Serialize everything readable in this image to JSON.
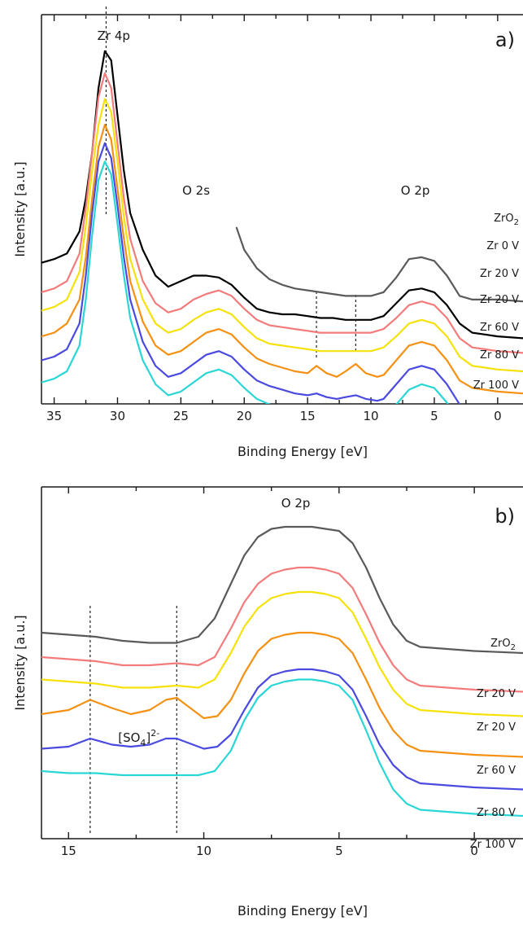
{
  "chart_data": [
    {
      "type": "line",
      "panel_label": "a)",
      "xlabel": "Binding Energy [eV]",
      "ylabel": "Intensity [a.u.]",
      "xlim": [
        36,
        -2
      ],
      "x_reversed": true,
      "x_ticks": [
        35,
        30,
        25,
        20,
        15,
        10,
        5,
        0
      ],
      "annotations": [
        {
          "text": "Zr 4p",
          "x": 30.3
        },
        {
          "text": "O 2s",
          "x": 23.8
        },
        {
          "text": "O 2p",
          "x": 6.5
        }
      ],
      "dashed_lines_x": [
        30.9,
        14.3,
        11.2
      ],
      "series": [
        {
          "name": "ZrO",
          "name_sub": "2",
          "color": "#5a5a5a",
          "x": [
            20.6,
            20,
            19,
            18,
            17,
            16,
            15,
            14,
            13,
            12,
            11,
            10,
            9,
            8,
            7,
            6,
            5,
            4,
            3,
            2,
            1,
            0,
            -2
          ],
          "y": [
            0.74,
            0.62,
            0.52,
            0.46,
            0.43,
            0.41,
            0.4,
            0.39,
            0.38,
            0.37,
            0.37,
            0.37,
            0.39,
            0.47,
            0.57,
            0.58,
            0.56,
            0.48,
            0.37,
            0.35,
            0.35,
            0.35,
            0.34
          ]
        },
        {
          "name": "Zr 0 V",
          "color": "#000000",
          "x": [
            36,
            35,
            34,
            33,
            32.5,
            32,
            31.5,
            31,
            30.5,
            30,
            29.5,
            29,
            28,
            27,
            26,
            25,
            24,
            23,
            22,
            21,
            20,
            19,
            18,
            17,
            16,
            15,
            14,
            13,
            12,
            11,
            10,
            9,
            8,
            7,
            6,
            5,
            4,
            3,
            2,
            1,
            0,
            -2
          ],
          "y": [
            0.55,
            0.57,
            0.6,
            0.72,
            0.9,
            1.15,
            1.5,
            1.7,
            1.65,
            1.35,
            1.05,
            0.82,
            0.62,
            0.48,
            0.42,
            0.45,
            0.48,
            0.48,
            0.47,
            0.43,
            0.36,
            0.3,
            0.28,
            0.27,
            0.27,
            0.26,
            0.25,
            0.25,
            0.24,
            0.24,
            0.24,
            0.26,
            0.33,
            0.4,
            0.41,
            0.39,
            0.32,
            0.22,
            0.17,
            0.16,
            0.15,
            0.14
          ]
        },
        {
          "name": "Zr 20 V",
          "color": "#f37b7b",
          "x": [
            36,
            35,
            34,
            33,
            32.5,
            32,
            31.5,
            31,
            30.5,
            30,
            29.5,
            29,
            28,
            27,
            26,
            25,
            24,
            23,
            22,
            21,
            20,
            19,
            18,
            17,
            16,
            15,
            14,
            13,
            12,
            11,
            10,
            9,
            8,
            7,
            6,
            5,
            4,
            3,
            2,
            1,
            0,
            -2
          ],
          "y": [
            0.39,
            0.41,
            0.45,
            0.6,
            0.85,
            1.15,
            1.45,
            1.58,
            1.5,
            1.2,
            0.9,
            0.68,
            0.45,
            0.33,
            0.28,
            0.3,
            0.35,
            0.38,
            0.4,
            0.37,
            0.3,
            0.24,
            0.21,
            0.2,
            0.19,
            0.18,
            0.17,
            0.17,
            0.17,
            0.17,
            0.17,
            0.19,
            0.25,
            0.32,
            0.34,
            0.32,
            0.25,
            0.14,
            0.09,
            0.08,
            0.07,
            0.06
          ]
        },
        {
          "name": "Zr 20 V",
          "color": "#f5e20a",
          "x": [
            36,
            35,
            34,
            33,
            32.5,
            32,
            31.5,
            31,
            30.5,
            30,
            29.5,
            29,
            28,
            27,
            26,
            25,
            24,
            23,
            22,
            21,
            20,
            19,
            18,
            17,
            16,
            15,
            14,
            13,
            12,
            11,
            10,
            9,
            8,
            7,
            6,
            5,
            4,
            3,
            2,
            1,
            0,
            -2
          ],
          "y": [
            0.29,
            0.31,
            0.35,
            0.5,
            0.75,
            1.05,
            1.3,
            1.44,
            1.37,
            1.1,
            0.8,
            0.57,
            0.35,
            0.22,
            0.17,
            0.19,
            0.24,
            0.28,
            0.3,
            0.27,
            0.2,
            0.14,
            0.11,
            0.1,
            0.09,
            0.08,
            0.07,
            0.07,
            0.07,
            0.07,
            0.07,
            0.09,
            0.15,
            0.22,
            0.24,
            0.22,
            0.15,
            0.04,
            -0.01,
            -0.02,
            -0.03,
            -0.04
          ]
        },
        {
          "name": "Zr 60 V",
          "color": "#f59112",
          "x": [
            36,
            35,
            34,
            33,
            32.5,
            32,
            31.5,
            31,
            30.5,
            30,
            29.5,
            29,
            28,
            27,
            26,
            25,
            24,
            23,
            22,
            21,
            20,
            19,
            18,
            17,
            16,
            15,
            14.3,
            13.5,
            12.7,
            12,
            11.2,
            10.4,
            9.5,
            9,
            8,
            7,
            6,
            5,
            4,
            3,
            2,
            1,
            0,
            -2
          ],
          "y": [
            0.15,
            0.17,
            0.22,
            0.35,
            0.58,
            0.9,
            1.18,
            1.3,
            1.22,
            0.95,
            0.68,
            0.45,
            0.23,
            0.1,
            0.05,
            0.07,
            0.12,
            0.17,
            0.19,
            0.16,
            0.09,
            0.03,
            0,
            -0.02,
            -0.04,
            -0.05,
            -0.01,
            -0.05,
            -0.07,
            -0.04,
            0,
            -0.05,
            -0.07,
            -0.06,
            0.02,
            0.1,
            0.12,
            0.1,
            0.02,
            -0.09,
            -0.13,
            -0.14,
            -0.15,
            -0.16
          ]
        },
        {
          "name": "Zr 80 V",
          "color": "#4a4ae0",
          "x": [
            36,
            35,
            34,
            33,
            32.5,
            32,
            31.5,
            31,
            30.5,
            30,
            29.5,
            29,
            28,
            27,
            26,
            25,
            24,
            23,
            22,
            21,
            20,
            19,
            18,
            17,
            16,
            15,
            14.3,
            13.5,
            12.7,
            12,
            11.2,
            10.4,
            9.5,
            9,
            8,
            7,
            6,
            5,
            4,
            3,
            2,
            1,
            0,
            -2
          ],
          "y": [
            0.02,
            0.04,
            0.08,
            0.22,
            0.48,
            0.82,
            1.1,
            1.2,
            1.12,
            0.86,
            0.58,
            0.35,
            0.12,
            -0.01,
            -0.07,
            -0.05,
            0,
            0.05,
            0.07,
            0.04,
            -0.03,
            -0.09,
            -0.12,
            -0.14,
            -0.16,
            -0.17,
            -0.16,
            -0.18,
            -0.19,
            -0.18,
            -0.17,
            -0.19,
            -0.2,
            -0.19,
            -0.11,
            -0.03,
            -0.01,
            -0.03,
            -0.11,
            -0.22,
            -0.26,
            -0.27,
            -0.28,
            -0.29
          ]
        },
        {
          "name": "Zr 100 V",
          "color": "#2ad6d6",
          "x": [
            36,
            35,
            34,
            33,
            32.5,
            32,
            31.5,
            31,
            30.5,
            30,
            29.5,
            29,
            28,
            27,
            26,
            25,
            24,
            23,
            22,
            21,
            20,
            19,
            18,
            17,
            16,
            15,
            14,
            13,
            12,
            11,
            10,
            9,
            8,
            7,
            6,
            5,
            4,
            3,
            2,
            1,
            0,
            -2
          ],
          "y": [
            -0.1,
            -0.08,
            -0.04,
            0.1,
            0.35,
            0.7,
            1,
            1.1,
            1.03,
            0.76,
            0.48,
            0.25,
            0.02,
            -0.11,
            -0.17,
            -0.15,
            -0.1,
            -0.05,
            -0.03,
            -0.06,
            -0.13,
            -0.19,
            -0.22,
            -0.24,
            -0.26,
            -0.27,
            -0.28,
            -0.28,
            -0.29,
            -0.29,
            -0.29,
            -0.28,
            -0.22,
            -0.14,
            -0.11,
            -0.13,
            -0.21,
            -0.33,
            -0.38,
            -0.39,
            -0.4,
            -0.41
          ]
        }
      ]
    },
    {
      "type": "line",
      "panel_label": "b)",
      "xlabel": "Binding Energy [eV]",
      "ylabel": "Intensity [a.u.]",
      "xlim": [
        16,
        -1.8
      ],
      "x_reversed": true,
      "x_ticks": [
        15,
        10,
        5,
        0
      ],
      "annotations": [
        {
          "text": "O 2p",
          "x": 6.6
        },
        {
          "text": "[SO",
          "sub": "4",
          "sup": "2-",
          "text_close": "]",
          "x": 12.4
        }
      ],
      "dashed_lines_x": [
        14.2,
        11.0
      ],
      "series": [
        {
          "name": "ZrO",
          "name_sub": "2",
          "color": "#5a5a5a",
          "x": [
            16,
            15,
            14,
            13,
            12,
            11,
            10.2,
            9.6,
            9,
            8.5,
            8,
            7.5,
            7,
            6.5,
            6,
            5.5,
            5,
            4.5,
            4,
            3.5,
            3,
            2.5,
            2,
            1,
            0,
            -1.8
          ],
          "y": [
            0.48,
            0.47,
            0.46,
            0.44,
            0.43,
            0.43,
            0.46,
            0.55,
            0.72,
            0.86,
            0.95,
            0.99,
            1.0,
            1.0,
            1.0,
            0.99,
            0.98,
            0.92,
            0.8,
            0.65,
            0.52,
            0.44,
            0.41,
            0.4,
            0.39,
            0.38
          ]
        },
        {
          "name": "Zr 20 V",
          "color": "#f37b7b",
          "x": [
            16,
            15,
            14,
            13,
            12,
            11,
            10.2,
            9.6,
            9,
            8.5,
            8,
            7.5,
            7,
            6.5,
            6,
            5.5,
            5,
            4.5,
            4,
            3.5,
            3,
            2.5,
            2,
            1,
            0,
            -1.8
          ],
          "y": [
            0.36,
            0.35,
            0.34,
            0.32,
            0.32,
            0.33,
            0.32,
            0.36,
            0.5,
            0.63,
            0.72,
            0.77,
            0.79,
            0.8,
            0.8,
            0.79,
            0.77,
            0.7,
            0.57,
            0.43,
            0.32,
            0.25,
            0.22,
            0.21,
            0.2,
            0.19
          ]
        },
        {
          "name": "Zr 20 V",
          "color": "#f5e20a",
          "x": [
            16,
            15,
            14,
            13,
            12,
            11,
            10.2,
            9.6,
            9,
            8.5,
            8,
            7.5,
            7,
            6.5,
            6,
            5.5,
            5,
            4.5,
            4,
            3.5,
            3,
            2.5,
            2,
            1,
            0,
            -1.8
          ],
          "y": [
            0.25,
            0.24,
            0.23,
            0.21,
            0.21,
            0.22,
            0.21,
            0.25,
            0.38,
            0.51,
            0.6,
            0.65,
            0.67,
            0.68,
            0.68,
            0.67,
            0.65,
            0.58,
            0.45,
            0.31,
            0.2,
            0.13,
            0.1,
            0.09,
            0.08,
            0.07
          ]
        },
        {
          "name": "Zr 60 V",
          "color": "#f59112",
          "x": [
            16,
            15,
            14.2,
            13.4,
            12.7,
            12,
            11.4,
            11,
            10.6,
            10,
            9.5,
            9,
            8.5,
            8,
            7.5,
            7,
            6.5,
            6,
            5.5,
            5,
            4.5,
            4,
            3.5,
            3,
            2.5,
            2,
            1,
            0,
            -1.8
          ],
          "y": [
            0.08,
            0.1,
            0.15,
            0.11,
            0.08,
            0.1,
            0.15,
            0.16,
            0.12,
            0.06,
            0.07,
            0.15,
            0.28,
            0.39,
            0.45,
            0.47,
            0.48,
            0.48,
            0.47,
            0.45,
            0.38,
            0.25,
            0.11,
            0.0,
            -0.07,
            -0.1,
            -0.11,
            -0.12,
            -0.13
          ]
        },
        {
          "name": "Zr 80 V",
          "color": "#4a4ae0",
          "x": [
            16,
            15,
            14.2,
            13.4,
            12.7,
            12,
            11.4,
            11,
            10.6,
            10,
            9.5,
            9,
            8.5,
            8,
            7.5,
            7,
            6.5,
            6,
            5.5,
            5,
            4.5,
            4,
            3.5,
            3,
            2.5,
            2,
            1,
            0,
            -1.8
          ],
          "y": [
            -0.09,
            -0.08,
            -0.04,
            -0.07,
            -0.08,
            -0.07,
            -0.04,
            -0.04,
            -0.06,
            -0.09,
            -0.08,
            -0.02,
            0.1,
            0.21,
            0.27,
            0.29,
            0.3,
            0.3,
            0.29,
            0.27,
            0.2,
            0.07,
            -0.07,
            -0.17,
            -0.23,
            -0.26,
            -0.27,
            -0.28,
            -0.29
          ]
        },
        {
          "name": "Zr 100 V",
          "color": "#2ad6d6",
          "x": [
            16,
            15,
            14,
            13,
            12,
            11,
            10.2,
            9.6,
            9,
            8.5,
            8,
            7.5,
            7,
            6.5,
            6,
            5.5,
            5,
            4.5,
            4,
            3.5,
            3,
            2.5,
            2,
            1,
            0,
            -1.8
          ],
          "y": [
            -0.2,
            -0.21,
            -0.21,
            -0.22,
            -0.22,
            -0.22,
            -0.22,
            -0.2,
            -0.1,
            0.05,
            0.16,
            0.22,
            0.24,
            0.25,
            0.25,
            0.24,
            0.22,
            0.15,
            0.0,
            -0.16,
            -0.29,
            -0.36,
            -0.39,
            -0.4,
            -0.41,
            -0.42
          ]
        }
      ]
    }
  ]
}
